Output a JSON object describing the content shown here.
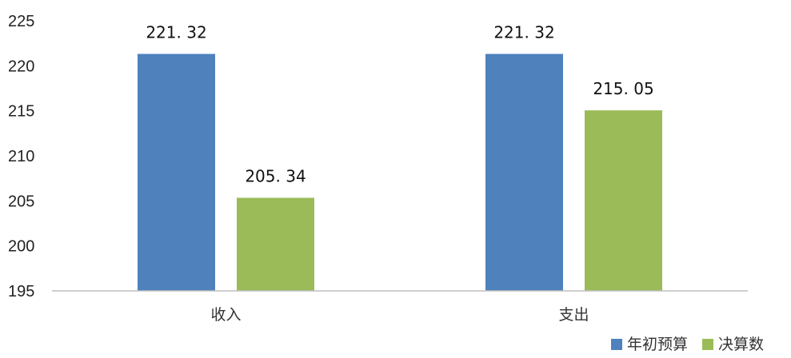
{
  "chart_data": {
    "type": "bar",
    "categories": [
      "收入",
      "支出"
    ],
    "series": [
      {
        "name": "年初预算",
        "values": [
          221.32,
          221.32
        ],
        "color": "#4f81bd"
      },
      {
        "name": "决算数",
        "values": [
          205.34,
          215.05
        ],
        "color": "#9bbb59"
      }
    ],
    "data_labels": [
      [
        "221. 32",
        "221. 32"
      ],
      [
        "205. 34",
        "215. 05"
      ]
    ],
    "ylim": [
      195,
      225
    ],
    "yticks": [
      195,
      200,
      205,
      210,
      215,
      220,
      225
    ],
    "grid": false,
    "legend_position": "bottom-right",
    "title": "",
    "xlabel": "",
    "ylabel": ""
  }
}
